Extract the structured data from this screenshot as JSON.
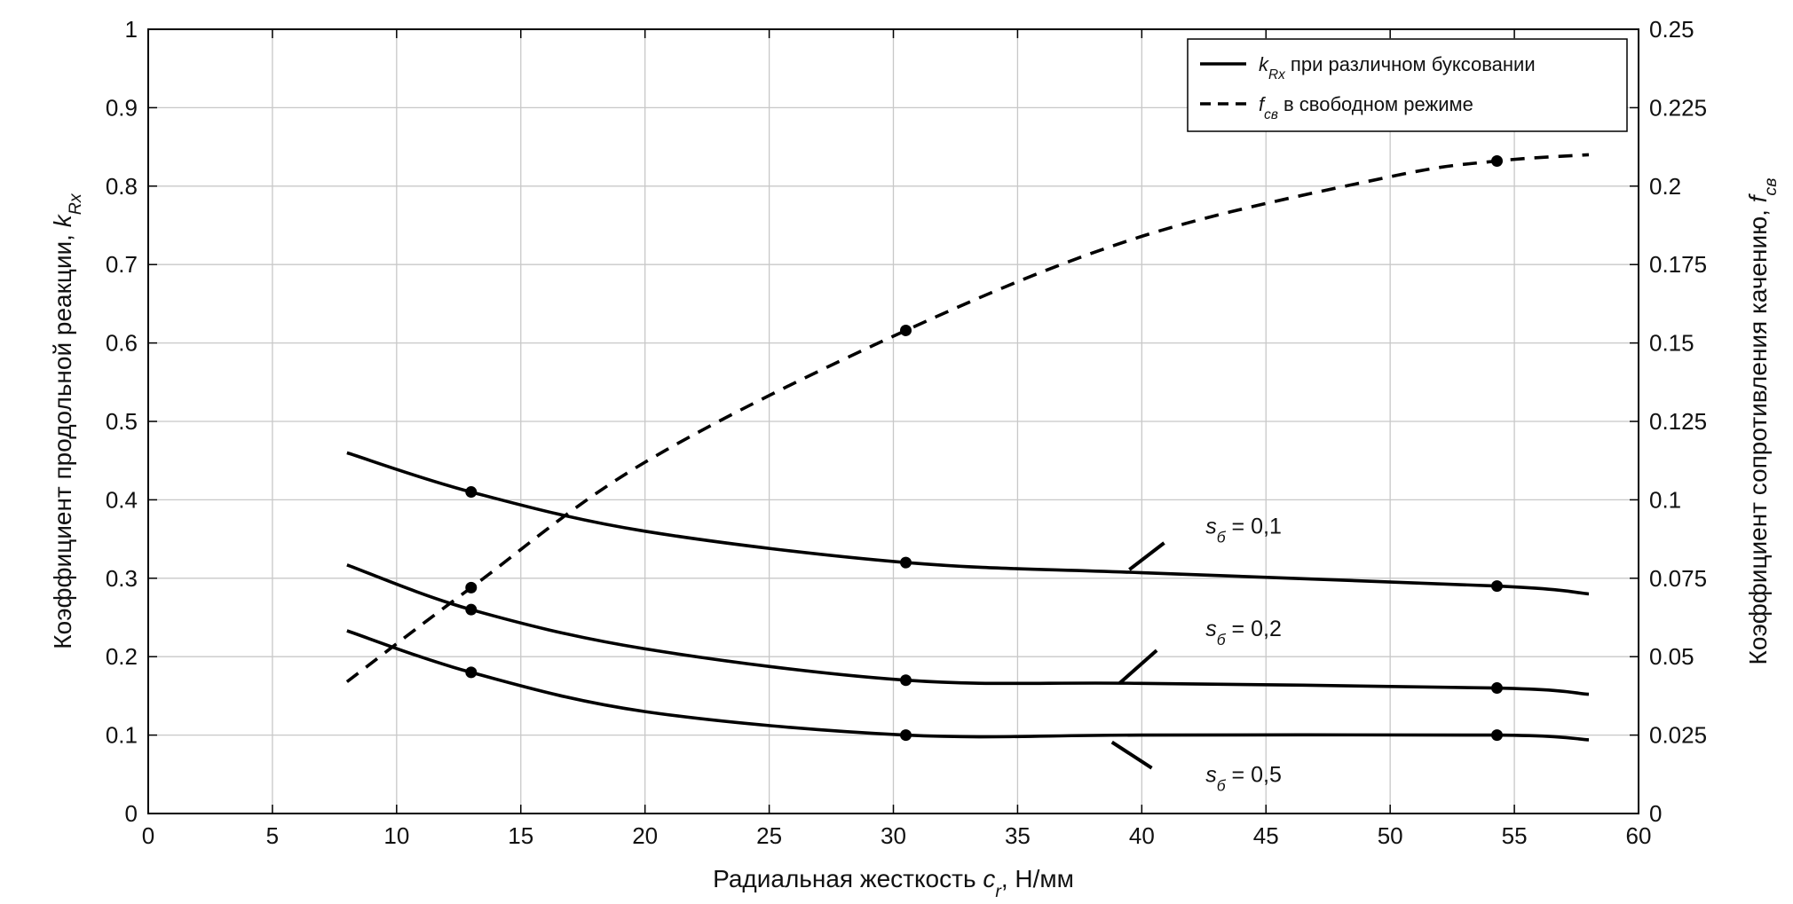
{
  "chart_data": {
    "type": "line",
    "xlabel": {
      "main": "Радиальная жесткость ",
      "sym": "c",
      "sub": "r",
      "tail": ", Н/мм"
    },
    "ylabel_left": {
      "main": "Коэффициент продольной реакции, ",
      "sym": "k",
      "sub": "Rx"
    },
    "ylabel_right": {
      "main": "Коэффициент сопротивления качению, ",
      "sym": "f",
      "sub": "св"
    },
    "xlim": [
      0,
      60
    ],
    "ylim_left": [
      0,
      1
    ],
    "ylim_right": [
      0,
      0.25
    ],
    "x_ticks": [
      "0",
      "5",
      "10",
      "15",
      "20",
      "25",
      "30",
      "35",
      "40",
      "45",
      "50",
      "55",
      "60"
    ],
    "y_ticks_left": [
      "0",
      "0.1",
      "0.2",
      "0.3",
      "0.4",
      "0.5",
      "0.6",
      "0.7",
      "0.8",
      "0.9",
      "1"
    ],
    "y_ticks_right": [
      "0",
      "0.025",
      "0.05",
      "0.075",
      "0.1",
      "0.125",
      "0.15",
      "0.175",
      "0.2",
      "0.225",
      "0.25"
    ],
    "grid": true,
    "legend_position": "top-right",
    "legend": [
      {
        "sym": "k",
        "sub": "Rx",
        "text": " при различном буксовании",
        "style": "solid"
      },
      {
        "sym": "f",
        "sub": "св",
        "text": " в свободном режиме",
        "style": "dashed"
      }
    ],
    "series": [
      {
        "axis": "left",
        "style": "solid",
        "x": [
          8,
          13,
          20,
          30.5,
          40,
          54.3,
          58
        ],
        "y": [
          0.46,
          0.41,
          0.36,
          0.32,
          0.307,
          0.29,
          0.28
        ],
        "markers": [
          {
            "x": 13,
            "y": 0.41
          },
          {
            "x": 30.5,
            "y": 0.32
          },
          {
            "x": 54.3,
            "y": 0.29
          }
        ],
        "label": {
          "sym": "s",
          "sub": "б",
          "text": " = 0,1",
          "x": 44.1,
          "y": 0.357,
          "lead": [
            [
              39.5,
              0.311
            ],
            [
              40.9,
              0.345
            ]
          ]
        }
      },
      {
        "axis": "left",
        "style": "solid",
        "x": [
          8,
          13,
          20,
          30.5,
          40,
          54.3,
          58
        ],
        "y": [
          0.317,
          0.26,
          0.21,
          0.17,
          0.166,
          0.16,
          0.152
        ],
        "markers": [
          {
            "x": 13,
            "y": 0.26
          },
          {
            "x": 30.5,
            "y": 0.17
          },
          {
            "x": 54.3,
            "y": 0.16
          }
        ],
        "label": {
          "sym": "s",
          "sub": "б",
          "text": " = 0,2",
          "x": 44.1,
          "y": 0.226,
          "lead": [
            [
              39.1,
              0.166
            ],
            [
              40.6,
              0.208
            ]
          ]
        }
      },
      {
        "axis": "left",
        "style": "solid",
        "x": [
          8,
          13,
          20,
          30.5,
          40,
          54.3,
          58
        ],
        "y": [
          0.233,
          0.18,
          0.13,
          0.1,
          0.1,
          0.1,
          0.094
        ],
        "markers": [
          {
            "x": 13,
            "y": 0.18
          },
          {
            "x": 30.5,
            "y": 0.1
          },
          {
            "x": 54.3,
            "y": 0.1
          }
        ],
        "label": {
          "sym": "s",
          "sub": "б",
          "text": " = 0,5",
          "x": 44.1,
          "y": 0.04,
          "lead": [
            [
              38.8,
              0.091
            ],
            [
              40.4,
              0.058
            ]
          ]
        }
      },
      {
        "axis": "right",
        "style": "dashed",
        "x": [
          8,
          13,
          20,
          30.5,
          40,
          50,
          54.3,
          58
        ],
        "y": [
          0.042,
          0.072,
          0.112,
          0.154,
          0.184,
          0.203,
          0.208,
          0.21
        ],
        "markers": [
          {
            "x": 13,
            "y": 0.072
          },
          {
            "x": 30.5,
            "y": 0.154
          },
          {
            "x": 54.3,
            "y": 0.208
          }
        ]
      }
    ]
  }
}
